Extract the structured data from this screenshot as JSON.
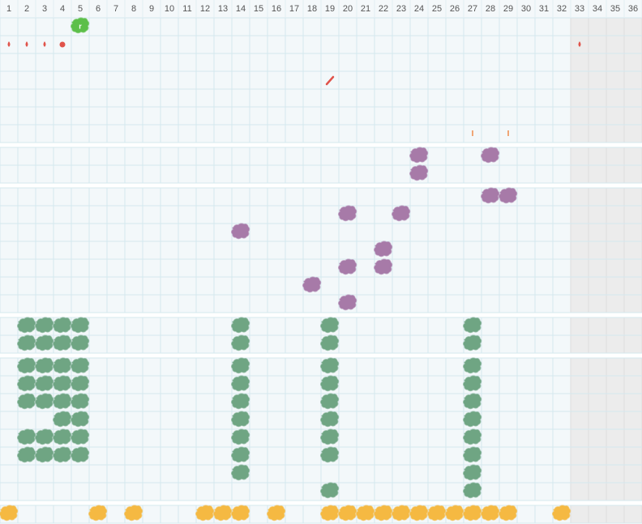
{
  "board": {
    "columns": [
      1,
      2,
      3,
      4,
      5,
      6,
      7,
      8,
      9,
      10,
      11,
      12,
      13,
      14,
      15,
      16,
      17,
      18,
      19,
      20,
      21,
      22,
      23,
      24,
      25,
      26,
      27,
      28,
      29,
      30,
      31,
      32,
      33,
      34,
      35,
      36
    ],
    "badge": "r"
  }
}
